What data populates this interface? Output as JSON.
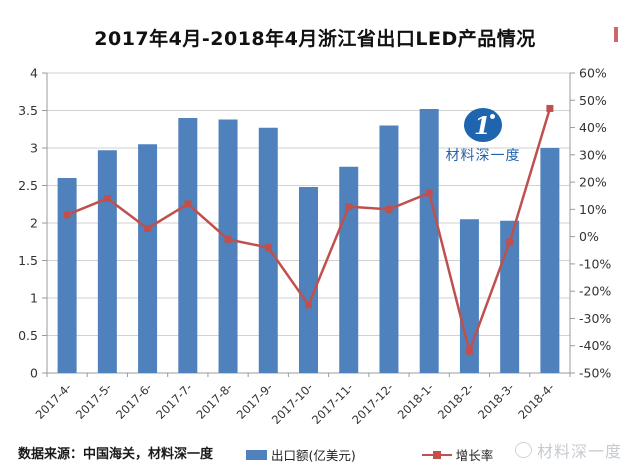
{
  "title": "2017年4月-2018年4月浙江省出口LED产品情况",
  "source_note": "数据来源：中国海关，材料深一度",
  "watermark": {
    "brand": "材料深一度",
    "logo_glyph": "1"
  },
  "colors": {
    "bar": "#4f81bd",
    "line": "#c0504d",
    "grid": "#d2d2d2",
    "axis": "#9b9b9b",
    "tick_text": "#333333",
    "watermark_blue": "#2263ac",
    "watermark_gray": "#c6cbd1"
  },
  "legend": {
    "bar_label": "出口额(亿美元)",
    "line_label": "增长率"
  },
  "chart_data": {
    "type": "bar",
    "subtype": "bar+line combo, dual axis",
    "title": "2017年4月-2018年4月浙江省出口LED产品情况",
    "categories": [
      "2017-4-",
      "2017-5-",
      "2017-6-",
      "2017-7-",
      "2017-8-",
      "2017-9-",
      "2017-10-",
      "2017-11-",
      "2017-12-",
      "2018-1-",
      "2018-2-",
      "2018-3-",
      "2018-4-"
    ],
    "series": [
      {
        "name": "出口额(亿美元)",
        "type": "bar",
        "axis": "left",
        "values": [
          2.6,
          2.97,
          3.05,
          3.4,
          3.38,
          3.27,
          2.48,
          2.75,
          3.3,
          3.52,
          2.05,
          2.03,
          3.0
        ]
      },
      {
        "name": "增长率",
        "type": "line",
        "axis": "right",
        "values_pct": [
          8,
          14,
          3,
          12,
          -1,
          -4,
          -25,
          11,
          10,
          16,
          -42,
          -2,
          47
        ]
      }
    ],
    "left_axis": {
      "min": 0,
      "max": 4,
      "step": 0.5,
      "ticks": [
        "4",
        "3.5",
        "3",
        "2.5",
        "2",
        "1.5",
        "1",
        "0.5",
        "0"
      ]
    },
    "right_axis": {
      "min": -50,
      "max": 60,
      "step": 10,
      "ticks": [
        "60%",
        "50%",
        "40%",
        "30%",
        "20%",
        "10%",
        "0%",
        "-10%",
        "-20%",
        "-30%",
        "-40%",
        "-50%"
      ]
    },
    "grid": "horizontal gridlines on",
    "legend_position": "bottom"
  }
}
